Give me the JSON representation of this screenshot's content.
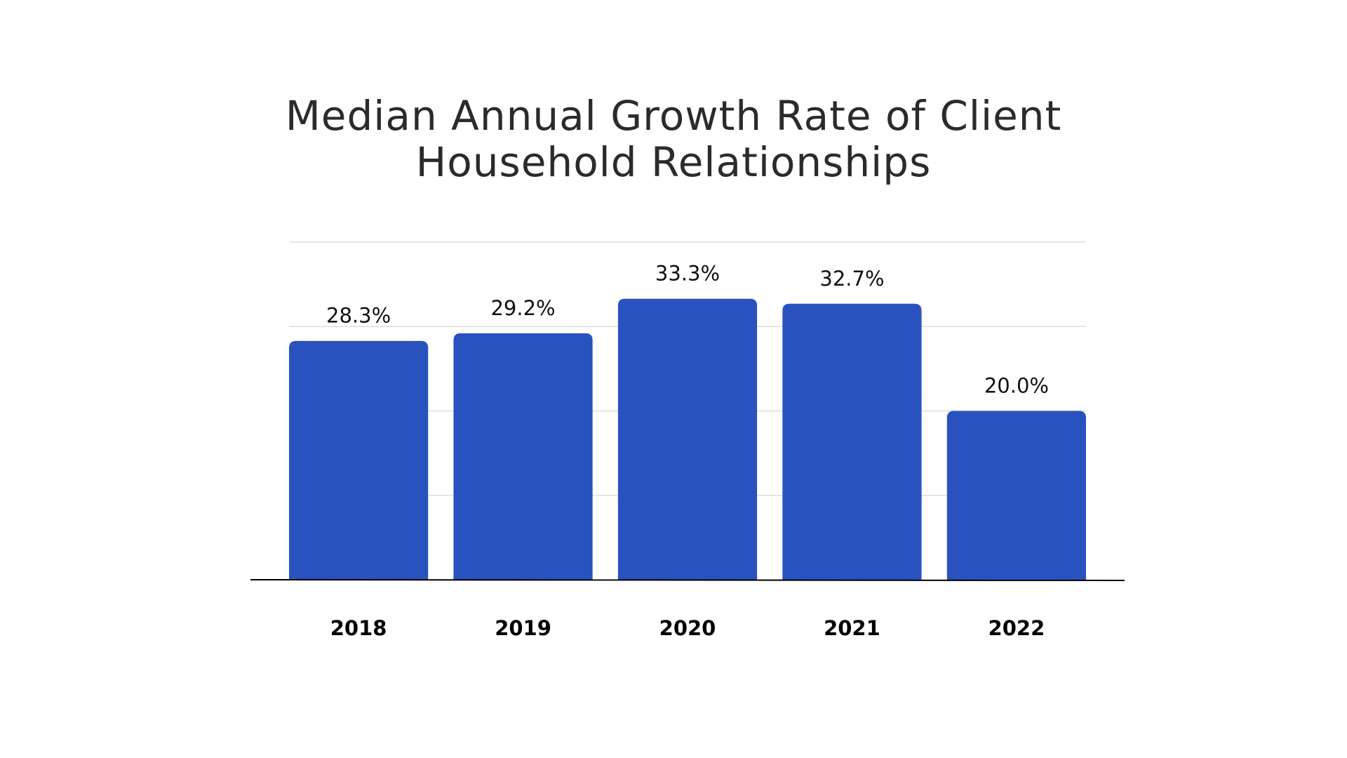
{
  "chart_data": {
    "type": "bar",
    "title_lines": [
      "Median Annual Growth Rate of Client",
      "Household Relationships"
    ],
    "categories": [
      "2018",
      "2019",
      "2020",
      "2021",
      "2022"
    ],
    "values": [
      28.3,
      29.2,
      33.3,
      32.7,
      20.0
    ],
    "value_labels": [
      "28.3%",
      "29.2%",
      "33.3%",
      "32.7%",
      "20.0%"
    ],
    "ylim": [
      0,
      40
    ],
    "grid": true,
    "gridline_values": [
      10,
      20,
      30,
      40
    ],
    "legend": "none",
    "bar_color": "#2a52be",
    "grid_color": "#dddddd",
    "axis_color": "#000000"
  }
}
